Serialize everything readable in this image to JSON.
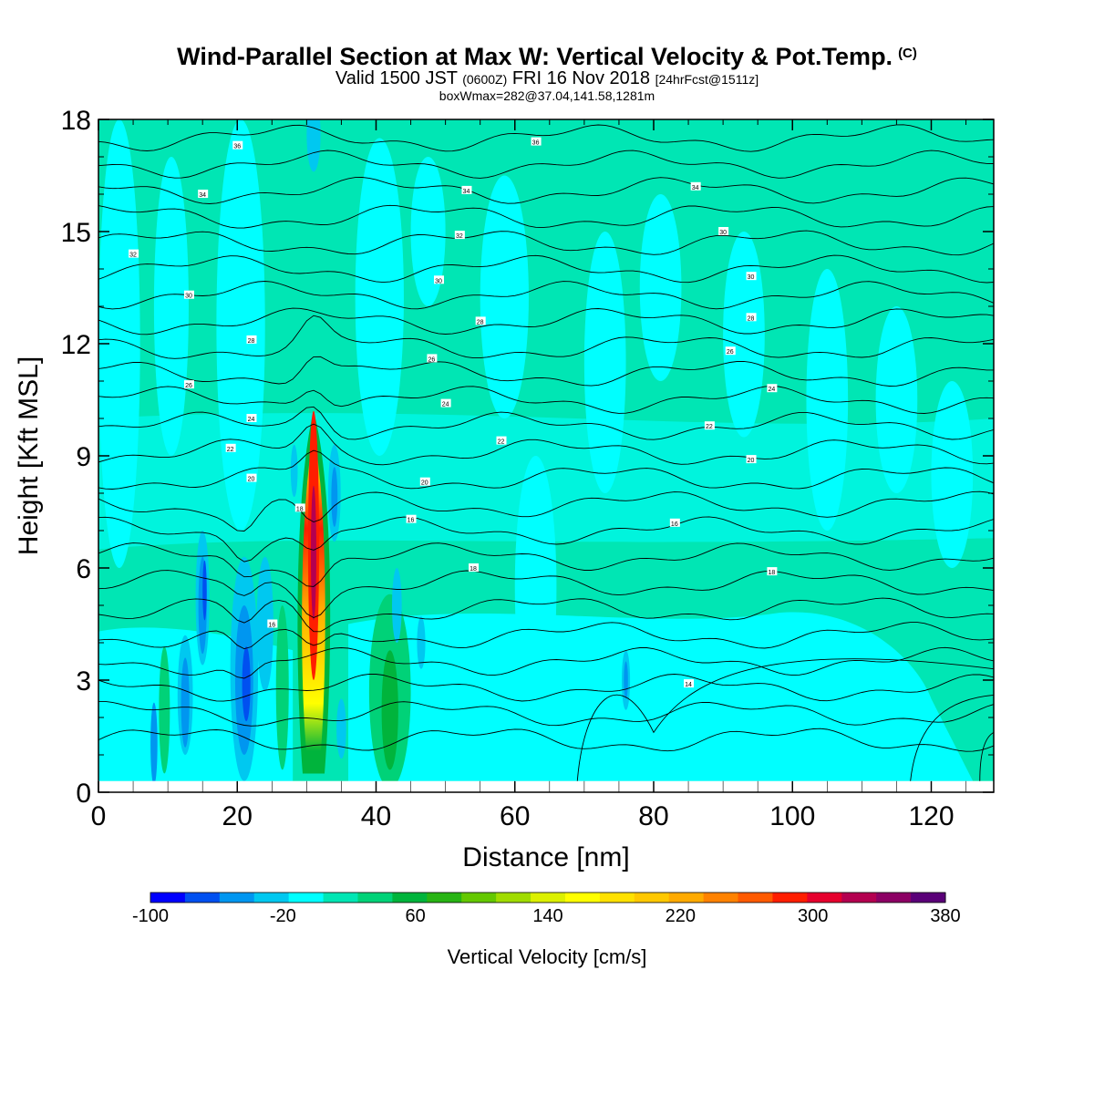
{
  "title": {
    "main": "Wind-Parallel Section at Max W: Vertical Velocity & Pot.Temp.",
    "tag": "(C)",
    "valid_prefix": "Valid 1500 JST",
    "valid_utc": "(0600Z)",
    "valid_date": "FRI 16 Nov 2018",
    "forecast": "[24hrFcst@1511z]",
    "boxinfo": "boxWmax=282@37.04,141.58,1281m"
  },
  "chart_data": {
    "type": "heatmap",
    "xlabel": "Distance [nm]",
    "ylabel": "Height [Kft MSL]",
    "xlim": [
      0,
      129
    ],
    "ylim": [
      0,
      18
    ],
    "xticks": [
      0,
      20,
      40,
      60,
      80,
      100,
      120
    ],
    "yticks": [
      0,
      3,
      6,
      9,
      12,
      15,
      18
    ],
    "colorbar": {
      "label": "Vertical Velocity [cm/s]",
      "range": [
        -100,
        380
      ],
      "tick_labels": [
        -100,
        -20,
        60,
        140,
        220,
        300,
        380
      ],
      "colors": [
        "#0000ff",
        "#0050f0",
        "#0096f0",
        "#00c8f0",
        "#00ffff",
        "#00e6b4",
        "#00d278",
        "#00b43c",
        "#28b414",
        "#64c800",
        "#a0dc00",
        "#dcf000",
        "#ffff00",
        "#ffe100",
        "#ffc800",
        "#ffaa00",
        "#ff8200",
        "#ff5a00",
        "#ff1e00",
        "#e6002d",
        "#b40050",
        "#8c0064",
        "#5a0078"
      ]
    },
    "features": [
      {
        "name": "updraft core",
        "x": 31,
        "base_kft": 0.5,
        "top_kft": 10.2,
        "max_cm_s": 282
      },
      {
        "name": "downdraft",
        "x": 15,
        "min_cm_s": -60
      },
      {
        "name": "downdraft",
        "x": 21,
        "min_cm_s": -60
      },
      {
        "name": "downdraft",
        "x": 34,
        "min_cm_s": -60
      }
    ],
    "isentrope_labels": [
      {
        "text": "36",
        "x": 20,
        "y": 17.3
      },
      {
        "text": "36",
        "x": 63,
        "y": 17.4
      },
      {
        "text": "34",
        "x": 15,
        "y": 16.0
      },
      {
        "text": "34",
        "x": 53,
        "y": 16.1
      },
      {
        "text": "34",
        "x": 86,
        "y": 16.2
      },
      {
        "text": "32",
        "x": 5,
        "y": 14.4
      },
      {
        "text": "32",
        "x": 52,
        "y": 14.9
      },
      {
        "text": "30",
        "x": 90,
        "y": 15.0
      },
      {
        "text": "30",
        "x": 13,
        "y": 13.3
      },
      {
        "text": "30",
        "x": 49,
        "y": 13.7
      },
      {
        "text": "30",
        "x": 94,
        "y": 13.8
      },
      {
        "text": "28",
        "x": 22,
        "y": 12.1
      },
      {
        "text": "28",
        "x": 55,
        "y": 12.6
      },
      {
        "text": "28",
        "x": 94,
        "y": 12.7
      },
      {
        "text": "26",
        "x": 13,
        "y": 10.9
      },
      {
        "text": "26",
        "x": 48,
        "y": 11.6
      },
      {
        "text": "26",
        "x": 91,
        "y": 11.8
      },
      {
        "text": "24",
        "x": 22,
        "y": 10.0
      },
      {
        "text": "24",
        "x": 50,
        "y": 10.4
      },
      {
        "text": "24",
        "x": 97,
        "y": 10.8
      },
      {
        "text": "22",
        "x": 19,
        "y": 9.2
      },
      {
        "text": "22",
        "x": 58,
        "y": 9.4
      },
      {
        "text": "22",
        "x": 88,
        "y": 9.8
      },
      {
        "text": "20",
        "x": 22,
        "y": 8.4
      },
      {
        "text": "20",
        "x": 47,
        "y": 8.3
      },
      {
        "text": "20",
        "x": 94,
        "y": 8.9
      },
      {
        "text": "18",
        "x": 29,
        "y": 7.6
      },
      {
        "text": "16",
        "x": 45,
        "y": 7.3
      },
      {
        "text": "16",
        "x": 83,
        "y": 7.2
      },
      {
        "text": "18",
        "x": 54,
        "y": 6.0
      },
      {
        "text": "18",
        "x": 97,
        "y": 5.9
      },
      {
        "text": "16",
        "x": 25,
        "y": 4.5
      },
      {
        "text": "14",
        "x": 85,
        "y": 2.9
      }
    ]
  }
}
